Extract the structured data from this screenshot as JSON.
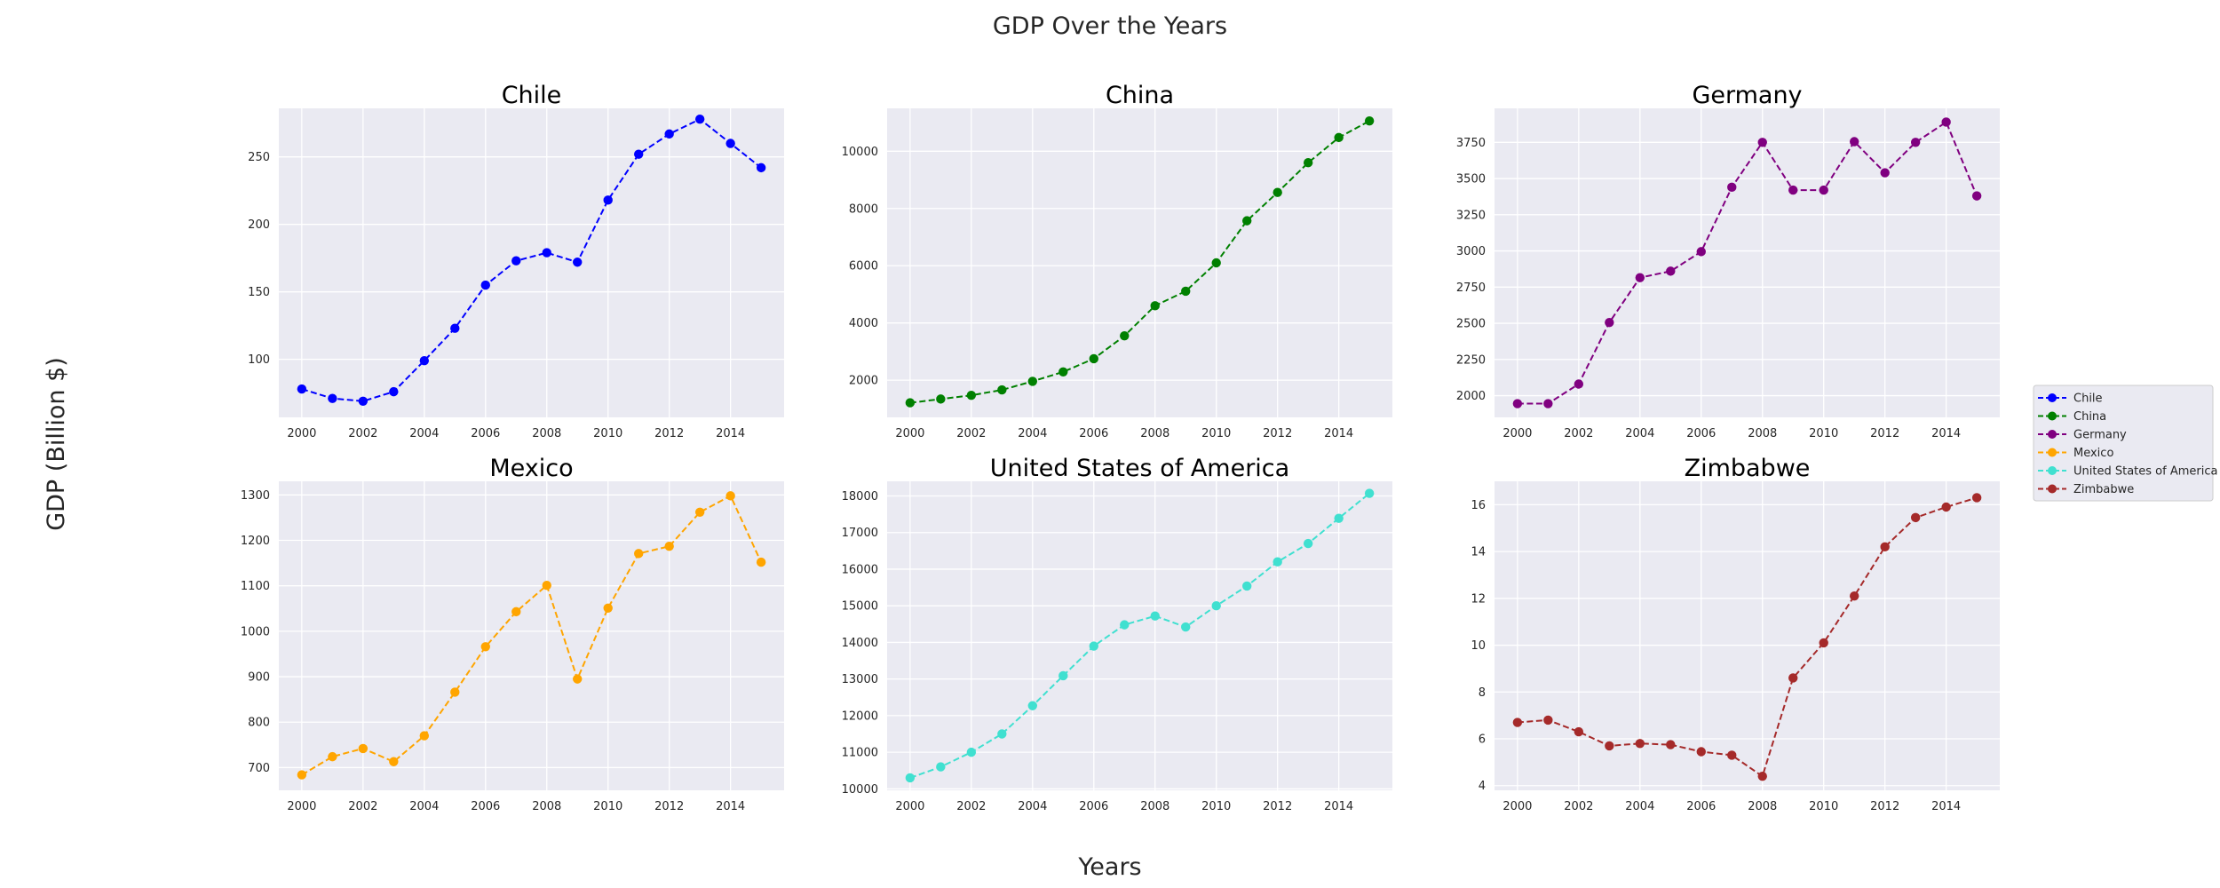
{
  "chart_data": {
    "type": "line",
    "title": "GDP Over the Years",
    "xlabel": "Years",
    "ylabel": "GDP (Billion $)",
    "x": [
      2000,
      2001,
      2002,
      2003,
      2004,
      2005,
      2006,
      2007,
      2008,
      2009,
      2010,
      2011,
      2012,
      2013,
      2014,
      2015
    ],
    "xlim": [
      1999.25,
      2015.75
    ],
    "xticks": [
      "2000",
      "2002",
      "2004",
      "2006",
      "2008",
      "2010",
      "2012",
      "2014"
    ],
    "grid": true,
    "line_style": "dashed",
    "marker": "circle",
    "legend_position": "right",
    "panels": [
      {
        "title": "Chile",
        "color": "#0000ff",
        "ylim": [
          57,
          286
        ],
        "yticks": [
          "100",
          "150",
          "200",
          "250"
        ],
        "values": [
          78,
          71,
          69,
          76,
          99,
          123,
          155,
          173,
          179,
          172,
          218,
          252,
          267,
          278,
          260,
          242
        ]
      },
      {
        "title": "China",
        "color": "#008000",
        "ylim": [
          700,
          11500
        ],
        "yticks": [
          "2000",
          "4000",
          "6000",
          "8000",
          "10000"
        ],
        "values": [
          1210,
          1340,
          1470,
          1660,
          1960,
          2290,
          2750,
          3550,
          4600,
          5110,
          6100,
          7570,
          8560,
          9600,
          10480,
          11060
        ]
      },
      {
        "title": "Germany",
        "color": "#800080",
        "ylim": [
          1850,
          3985
        ],
        "yticks": [
          "2000",
          "2250",
          "2500",
          "2750",
          "3000",
          "3250",
          "3500",
          "3750"
        ],
        "values": [
          1945,
          1945,
          2080,
          2505,
          2815,
          2860,
          2995,
          3440,
          3750,
          3420,
          3420,
          3755,
          3540,
          3750,
          3890,
          3380
        ]
      },
      {
        "title": "Mexico",
        "color": "#ffa500",
        "ylim": [
          650,
          1330
        ],
        "yticks": [
          "700",
          "800",
          "900",
          "1000",
          "1100",
          "1200",
          "1300"
        ],
        "values": [
          684,
          724,
          742,
          713,
          770,
          866,
          966,
          1043,
          1101,
          895,
          1051,
          1171,
          1187,
          1262,
          1298,
          1152
        ]
      },
      {
        "title": "United States of America",
        "color": "#40e0d0",
        "ylim": [
          9960,
          18400
        ],
        "yticks": [
          "10000",
          "11000",
          "12000",
          "13000",
          "14000",
          "15000",
          "16000",
          "17000",
          "18000"
        ],
        "values": [
          10300,
          10600,
          11000,
          11500,
          12270,
          13090,
          13900,
          14480,
          14720,
          14420,
          15000,
          15540,
          16200,
          16700,
          17390,
          18070
        ]
      },
      {
        "title": "Zimbabwe",
        "color": "#a52a2a",
        "ylim": [
          3.8,
          17.0
        ],
        "yticks": [
          "4",
          "6",
          "8",
          "10",
          "12",
          "14",
          "16"
        ],
        "values": [
          6.7,
          6.8,
          6.3,
          5.7,
          5.8,
          5.75,
          5.45,
          5.3,
          4.4,
          8.6,
          10.1,
          12.1,
          14.2,
          15.45,
          15.9,
          16.3
        ]
      }
    ],
    "legend": [
      "Chile",
      "China",
      "Germany",
      "Mexico",
      "United States of America",
      "Zimbabwe"
    ]
  }
}
